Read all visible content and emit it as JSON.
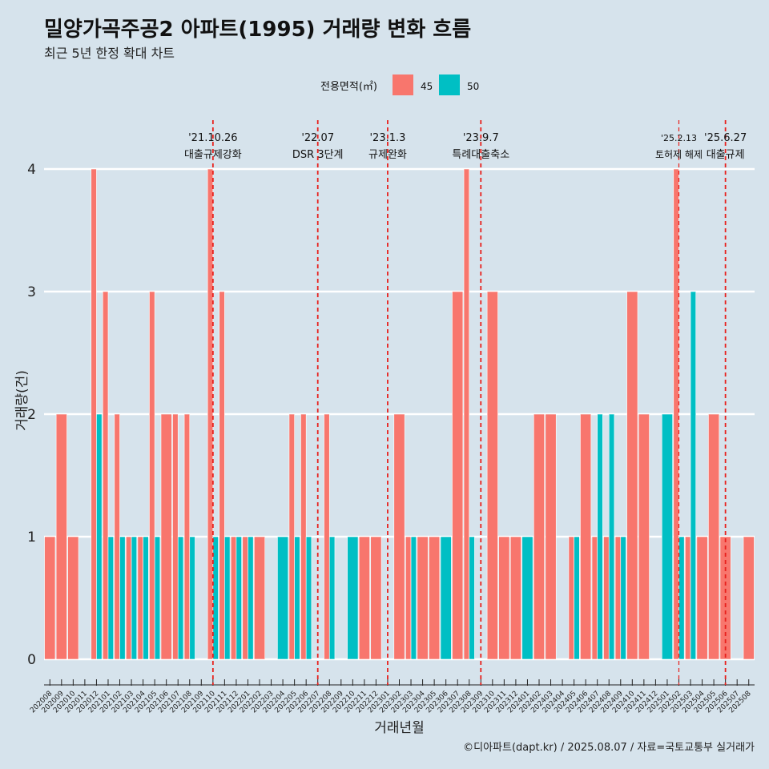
{
  "title": "밀양가곡주공2 아파트(1995) 거래량 변화 흐름",
  "subtitle": "최근 5년 한정 확대 차트",
  "caption": "©디아파트(dapt.kr) / 2025.08.07 / 자료=국토교통부 실거래가",
  "chart_data": {
    "type": "bar",
    "xlabel": "거래년월",
    "ylabel": "거래량(건)",
    "ylim": [
      0,
      4
    ],
    "yticks": [
      0,
      1,
      2,
      3,
      4
    ],
    "grid": true,
    "legend": {
      "title": "전용면적(㎡)",
      "position": "top"
    },
    "categories": [
      "202008",
      "202009",
      "202010",
      "202011",
      "202012",
      "202101",
      "202102",
      "202103",
      "202104",
      "202105",
      "202106",
      "202107",
      "202108",
      "202109",
      "202110",
      "202111",
      "202112",
      "202201",
      "202202",
      "202203",
      "202204",
      "202205",
      "202206",
      "202207",
      "202208",
      "202209",
      "202210",
      "202211",
      "202212",
      "202301",
      "202302",
      "202303",
      "202304",
      "202305",
      "202306",
      "202307",
      "202308",
      "202309",
      "202310",
      "202311",
      "202312",
      "202401",
      "202402",
      "202403",
      "202404",
      "202405",
      "202406",
      "202407",
      "202408",
      "202409",
      "202410",
      "202411",
      "202412",
      "202501",
      "202502",
      "202503",
      "202504",
      "202505",
      "202506",
      "202507",
      "202508"
    ],
    "series": [
      {
        "name": "45",
        "color": "#f8766d",
        "values": [
          1,
          2,
          1,
          0,
          4,
          3,
          2,
          1,
          1,
          3,
          2,
          2,
          2,
          0,
          4,
          3,
          1,
          1,
          1,
          0,
          0,
          2,
          2,
          0,
          2,
          0,
          0,
          1,
          1,
          0,
          2,
          1,
          1,
          1,
          0,
          3,
          4,
          0,
          3,
          1,
          1,
          0,
          2,
          2,
          0,
          1,
          2,
          1,
          1,
          1,
          3,
          2,
          0,
          0,
          4,
          1,
          1,
          2,
          1,
          0,
          1
        ]
      },
      {
        "name": "50",
        "color": "#00bfc4",
        "values": [
          0,
          0,
          0,
          0,
          2,
          1,
          1,
          1,
          1,
          1,
          0,
          1,
          1,
          0,
          1,
          1,
          1,
          1,
          0,
          0,
          1,
          1,
          1,
          0,
          1,
          0,
          1,
          0,
          0,
          0,
          0,
          1,
          0,
          0,
          1,
          0,
          1,
          0,
          0,
          0,
          0,
          1,
          0,
          0,
          0,
          1,
          0,
          2,
          2,
          1,
          0,
          0,
          0,
          2,
          1,
          3,
          0,
          0,
          0,
          0,
          0
        ]
      }
    ],
    "events": [
      {
        "date": "'21.10.26",
        "label": "대출규제강화",
        "x": "202110"
      },
      {
        "date": "'22.07",
        "label": "DSR 3단계",
        "x": "202207"
      },
      {
        "date": "'23.1.3",
        "label": "규제완화",
        "x": "202301"
      },
      {
        "date": "'23.9.7",
        "label": "특례대출축소",
        "x": "202309"
      },
      {
        "date": "'25.2.13",
        "label": "토허제 해제",
        "x": "202502"
      },
      {
        "date": "'25.6.27",
        "label": "대출규제",
        "x": "202506"
      }
    ]
  }
}
